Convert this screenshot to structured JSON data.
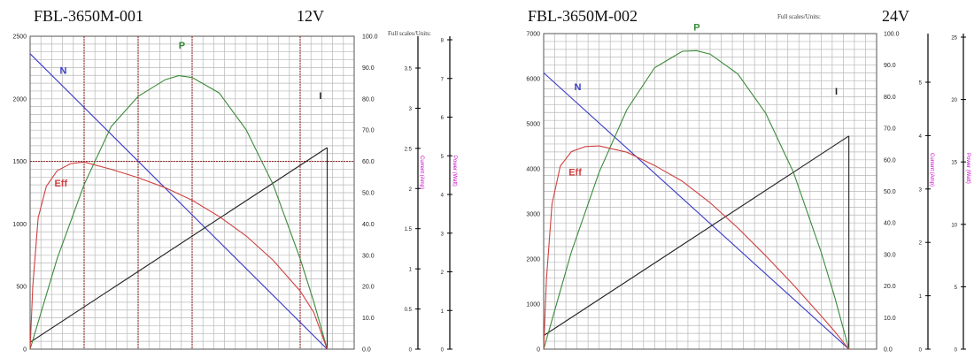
{
  "charts": [
    {
      "model": "FBL-3650M-001",
      "voltage": "12V",
      "units_label": "Full scales/Units:"
    },
    {
      "model": "FBL-3650M-002",
      "voltage": "24V",
      "units_label": "Full scales/Units:"
    }
  ],
  "colors": {
    "N": "#3a3ac8",
    "Eff": "#d04040",
    "P": "#3a8a3a",
    "I": "#222222",
    "grid": "#b8b8b8",
    "marker": "#8b1a1a",
    "axis_units": "#cc00cc"
  },
  "chart_data": [
    {
      "type": "line",
      "title": "FBL-3650M-001 12V",
      "y_left": {
        "range": [
          0,
          2500
        ],
        "ticks": [
          "0",
          "500",
          "1000",
          "1500",
          "2000",
          "2500"
        ]
      },
      "y_right": {
        "range": [
          0,
          100
        ],
        "ticks": [
          "0.0",
          "10.0",
          "20.0",
          "30.0",
          "40.0",
          "50.0",
          "60.0",
          "70.0",
          "80.0",
          "90.0",
          "100.0"
        ]
      },
      "current_axis": {
        "ticks": [
          "0",
          "0.5",
          "1",
          "1.5",
          "2",
          "2.5",
          "3",
          "3.5"
        ],
        "label": "Current (Amp)"
      },
      "power_axis": {
        "ticks": [
          "0",
          "1",
          "2",
          "3",
          "4",
          "5",
          "6",
          "7",
          "8"
        ],
        "label": "Power (Watt)"
      },
      "x_range": [
        0,
        1.2
      ],
      "series": [
        {
          "name": "N",
          "scale": "left",
          "x": [
            0,
            1.1
          ],
          "y": [
            2360,
            0
          ],
          "label_at": [
            0.11,
            2200
          ]
        },
        {
          "name": "I",
          "scale": "left",
          "x": [
            0,
            1.1
          ],
          "y": [
            55,
            1610
          ],
          "label_at": [
            1.07,
            2000
          ]
        },
        {
          "name": "P",
          "scale": "right",
          "x": [
            0,
            0.1,
            0.2,
            0.3,
            0.4,
            0.5,
            0.55,
            0.6,
            0.7,
            0.8,
            0.9,
            1.0,
            1.05,
            1.1
          ],
          "y": [
            0,
            28.9,
            52.6,
            71.1,
            80.8,
            86.1,
            87.4,
            86.8,
            81.9,
            70.1,
            52.6,
            28.9,
            15.2,
            0
          ],
          "label_at": [
            0.55,
            96
          ]
        },
        {
          "name": "Eff",
          "scale": "right",
          "x": [
            0,
            0.01,
            0.03,
            0.06,
            0.1,
            0.15,
            0.2,
            0.3,
            0.4,
            0.5,
            0.6,
            0.7,
            0.8,
            0.9,
            1.0,
            1.05,
            1.1
          ],
          "y": [
            0,
            20,
            42,
            52,
            57,
            59.3,
            59.8,
            57.5,
            54.8,
            51.6,
            47.6,
            42.4,
            36.2,
            28.4,
            18.6,
            11.8,
            0
          ],
          "label_at": [
            0.09,
            52
          ]
        }
      ],
      "vertical_markers": [
        0.2,
        0.4,
        0.6,
        1.0
      ],
      "horizontal_markers": [
        60
      ]
    },
    {
      "type": "line",
      "title": "FBL-3650M-002 24V",
      "y_left": {
        "range": [
          0,
          7000
        ],
        "ticks": [
          "0",
          "1000",
          "2000",
          "3000",
          "4000",
          "5000",
          "6000",
          "7000"
        ]
      },
      "y_right": {
        "range": [
          0,
          100
        ],
        "ticks": [
          "0.0",
          "10.0",
          "20.0",
          "30.0",
          "40.0",
          "50.0",
          "60.0",
          "70.0",
          "80.0",
          "90.0",
          "100.0"
        ]
      },
      "current_axis": {
        "ticks": [
          "0",
          "1",
          "2",
          "3",
          "4",
          "5"
        ],
        "label": "Current (Amp)"
      },
      "power_axis": {
        "ticks": [
          "0",
          "5",
          "10",
          "15",
          "20",
          "25"
        ],
        "label": "Power (Watt)"
      },
      "x_range": [
        0,
        1.2
      ],
      "series": [
        {
          "name": "N",
          "scale": "left",
          "x": [
            0,
            1.1
          ],
          "y": [
            6130,
            0
          ],
          "label_at": [
            0.11,
            5750
          ]
        },
        {
          "name": "I",
          "scale": "left",
          "x": [
            0,
            1.1
          ],
          "y": [
            300,
            4730
          ],
          "label_at": [
            1.05,
            5650
          ]
        },
        {
          "name": "P",
          "scale": "right",
          "x": [
            0,
            0.1,
            0.2,
            0.3,
            0.4,
            0.5,
            0.55,
            0.6,
            0.7,
            0.8,
            0.9,
            1.0,
            1.05,
            1.1
          ],
          "y": [
            0,
            30.8,
            56.1,
            75.9,
            89.2,
            94.4,
            94.6,
            93.5,
            87.2,
            74.8,
            56.1,
            30.8,
            16.2,
            0
          ],
          "label_at": [
            0.54,
            101
          ]
        },
        {
          "name": "Eff",
          "scale": "right",
          "x": [
            0,
            0.01,
            0.03,
            0.06,
            0.1,
            0.15,
            0.2,
            0.3,
            0.4,
            0.5,
            0.6,
            0.7,
            0.8,
            0.9,
            1.0,
            1.05,
            1.1
          ],
          "y": [
            0,
            22,
            46,
            58,
            62.6,
            64.2,
            64.4,
            62.4,
            58.2,
            53.2,
            46.4,
            38.4,
            29.6,
            20.4,
            10.6,
            5.5,
            0
          ],
          "label_at": [
            0.09,
            55
          ]
        }
      ],
      "vertical_markers": [],
      "horizontal_markers": []
    }
  ]
}
